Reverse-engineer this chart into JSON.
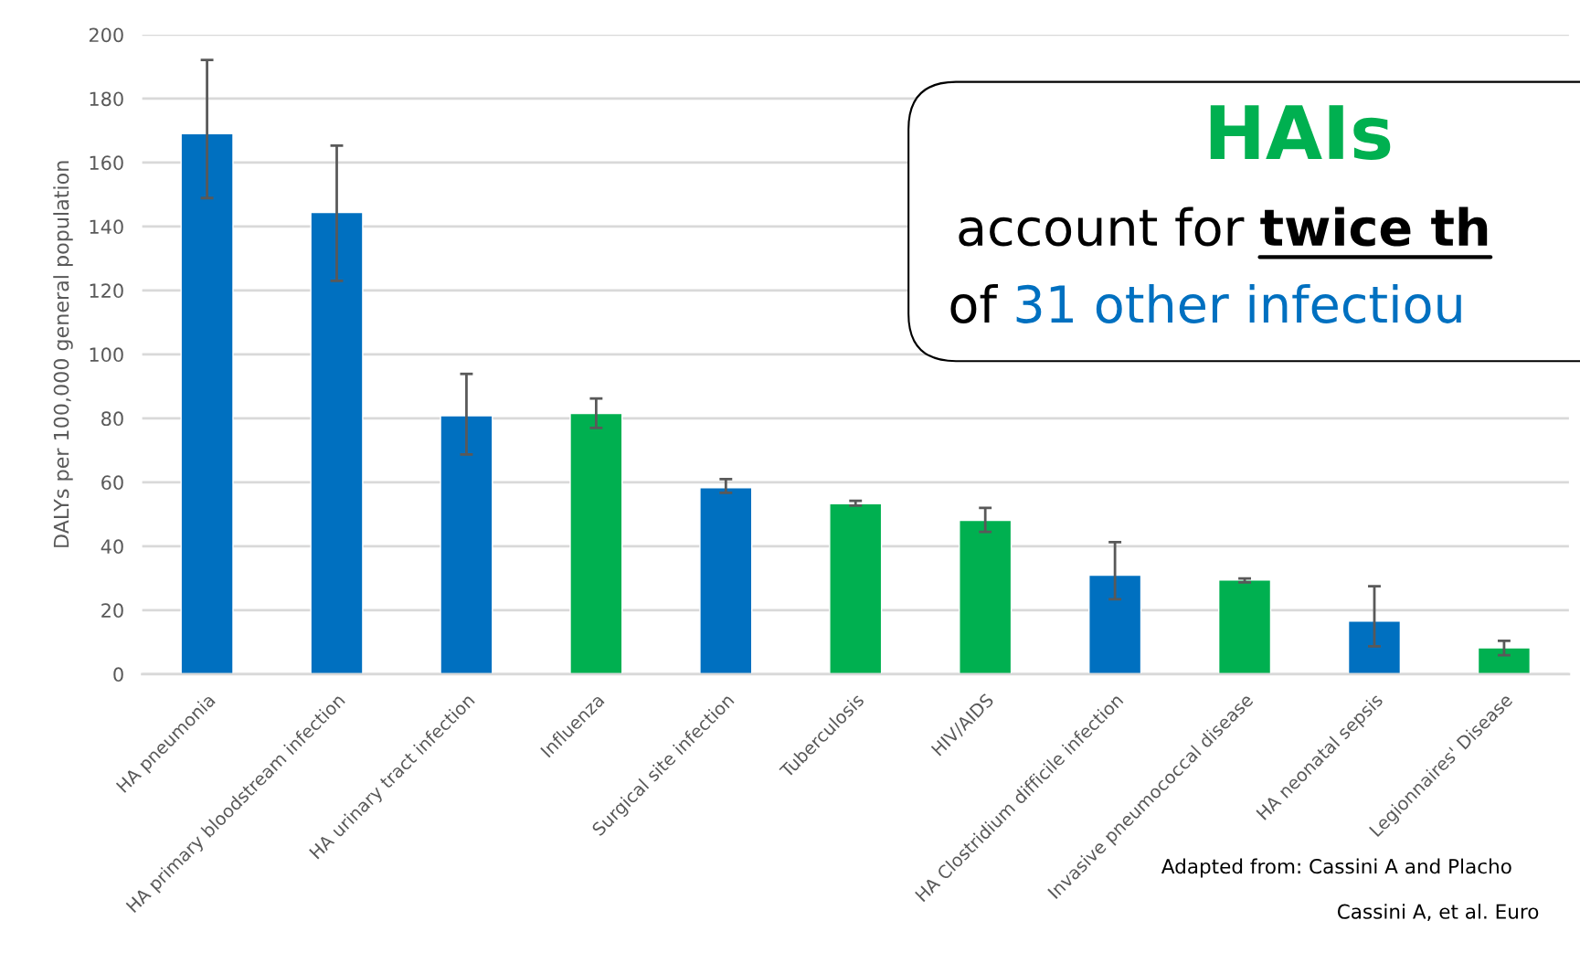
{
  "chart_data": {
    "type": "bar",
    "ylabel": "DALYs per 100,000 general population",
    "categories": [
      "HA pneumonia",
      "HA primary bloodstream infection",
      "HA urinary tract infection",
      "Influenza",
      "Surgical site infection",
      "Tuberculosis",
      "HIV/AIDS",
      "HA Clostridium difficile infection",
      "Invasive pneumococcal disease",
      "HA neonatal sepsis",
      "Legionnaires' Disease"
    ],
    "values": [
      169,
      144.4,
      80.8,
      81.5,
      58.3,
      53.3,
      48.1,
      30.9,
      29.4,
      16.6,
      8.2
    ],
    "colors": [
      "#0070c0",
      "#0070c0",
      "#0070c0",
      "#00b050",
      "#0070c0",
      "#00b050",
      "#00b050",
      "#0070c0",
      "#00b050",
      "#0070c0",
      "#00b050"
    ],
    "errors": [
      [
        148.9,
        192.1
      ],
      [
        123,
        165.3
      ],
      [
        68.7,
        93.9
      ],
      [
        77,
        86.2
      ],
      [
        56.7,
        61
      ],
      [
        52.7,
        54.2
      ],
      [
        44.5,
        52
      ],
      [
        23.4,
        41.3
      ],
      [
        28.7,
        29.9
      ],
      [
        8.7,
        27.5
      ],
      [
        5.9,
        10.4
      ]
    ],
    "ylim": [
      0,
      200
    ],
    "yticks": [
      0,
      20,
      40,
      60,
      80,
      100,
      120,
      140,
      160,
      180,
      200
    ],
    "grid": "y",
    "annotations": [
      "HAIs",
      "account for ",
      "twice th",
      "of ",
      "31 other infectiou",
      "Adapted from: Cassini A and Placho",
      "Cassini A, et al. Euro"
    ]
  }
}
